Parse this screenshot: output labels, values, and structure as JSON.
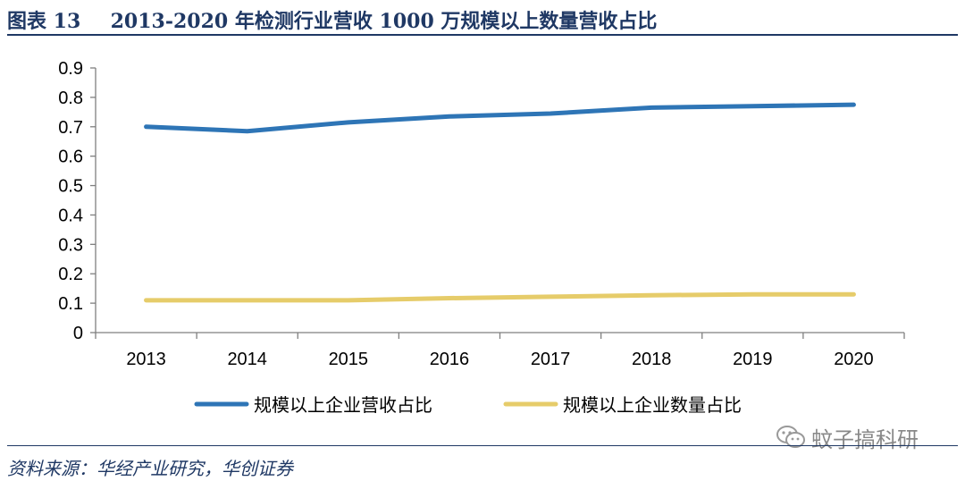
{
  "header": {
    "figure_label": "图表 13",
    "title": "2013-2020 年检测行业营收 1000 万规模以上数量营收占比"
  },
  "footer": {
    "source": "资料来源：华经产业研究，华创证券"
  },
  "watermark": {
    "text": "蚊子搞科研",
    "icon": "wechat-icon"
  },
  "colors": {
    "title": "#1f3864",
    "series_blue": "#2e75b6",
    "series_yellow": "#e6cc6a"
  },
  "chart_data": {
    "type": "line",
    "categories": [
      "2013",
      "2014",
      "2015",
      "2016",
      "2017",
      "2018",
      "2019",
      "2020"
    ],
    "series": [
      {
        "name": "规模以上企业营收占比",
        "values": [
          0.7,
          0.685,
          0.715,
          0.735,
          0.745,
          0.765,
          0.77,
          0.775
        ],
        "color": "#2e75b6"
      },
      {
        "name": "规模以上企业数量占比",
        "values": [
          0.11,
          0.11,
          0.11,
          0.117,
          0.122,
          0.127,
          0.13,
          0.13
        ],
        "color": "#e6cc6a"
      }
    ],
    "yticks": [
      "0",
      "0.1",
      "0.2",
      "0.3",
      "0.4",
      "0.5",
      "0.6",
      "0.7",
      "0.8",
      "0.9"
    ],
    "ylim": [
      0,
      0.9
    ],
    "grid": false,
    "legend_position": "bottom"
  }
}
